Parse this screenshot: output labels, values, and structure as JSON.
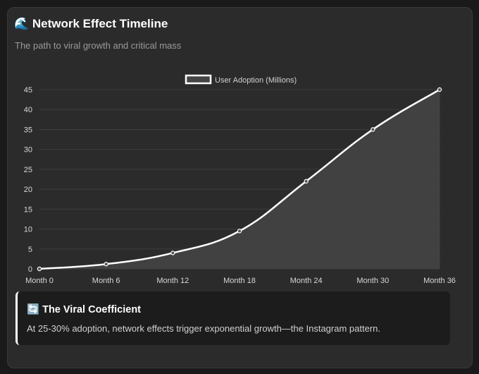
{
  "header": {
    "title": "🌊 Network Effect Timeline",
    "subtitle": "The path to viral growth and critical mass"
  },
  "chart_data": {
    "type": "area",
    "categories": [
      "Month 0",
      "Month 6",
      "Month 12",
      "Month 18",
      "Month 24",
      "Month 30",
      "Month 36"
    ],
    "series": [
      {
        "name": "User Adoption (Millions)",
        "values": [
          0,
          1.2,
          4,
          9.5,
          22,
          35,
          45
        ]
      }
    ],
    "y_ticks": [
      0,
      5,
      10,
      15,
      20,
      25,
      30,
      35,
      40,
      45
    ],
    "ylim": [
      0,
      45
    ],
    "grid": true,
    "legend_position": "top-center",
    "title": "",
    "xlabel": "",
    "ylabel": "",
    "colors": {
      "line": "#ffffff",
      "fill": "#444444",
      "grid": "#3d3d3d",
      "tick_text": "#d8d8d8",
      "legend_text": "#d0d0d0"
    }
  },
  "callout": {
    "title": "🔄 The Viral Coefficient",
    "body": "At 25-30% adoption, network effects trigger exponential growth—the Instagram pattern."
  }
}
